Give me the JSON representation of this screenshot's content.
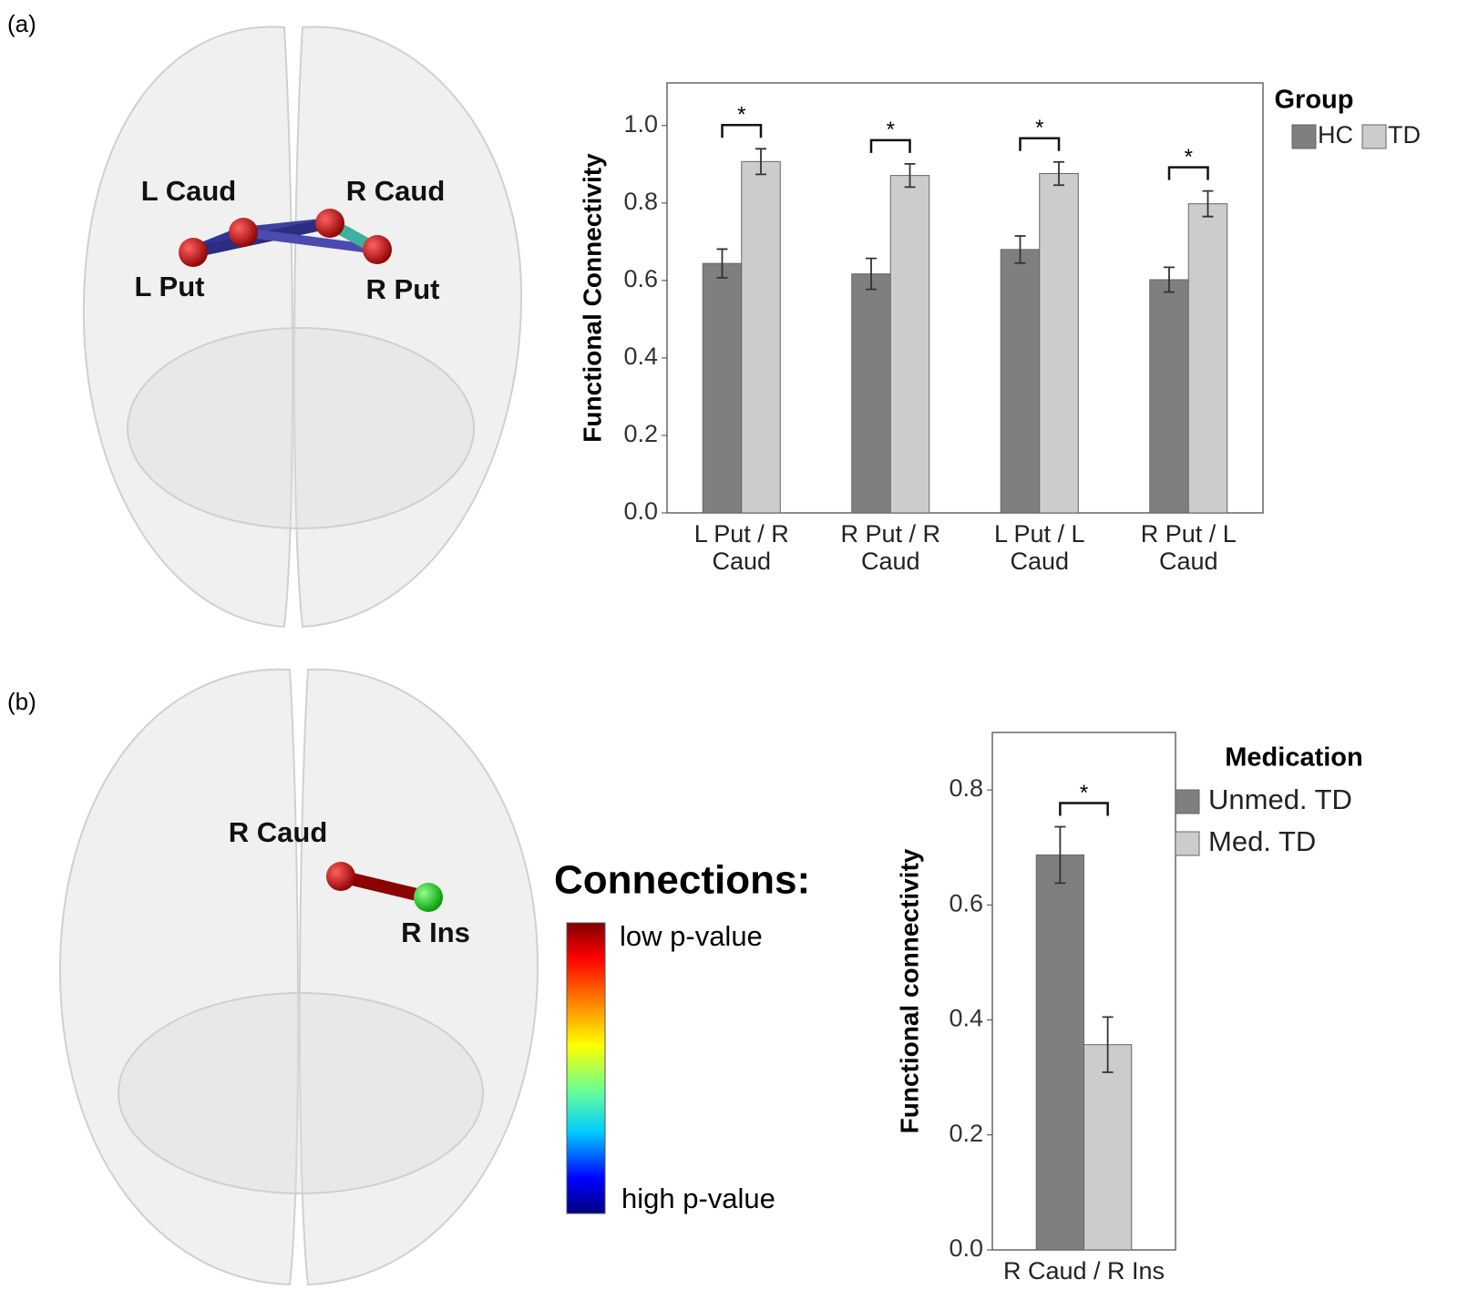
{
  "panel_labels": [
    "(a)",
    "(b)"
  ],
  "brain_labels": [
    [
      "L Caud",
      "R Caud",
      "L Put",
      "R Put"
    ],
    [
      "R Caud",
      "R Ins"
    ]
  ],
  "colorbar": {
    "title": "Connections:",
    "low": "low p-value",
    "high": "high p-value"
  },
  "chart_data": [
    {
      "type": "bar",
      "y_label": "Functional Connectivity",
      "legend_title": "Group",
      "categories": [
        "L Put / R Caud",
        "R Put / R Caud",
        "L Put / L Caud",
        "R Put / L Caud"
      ],
      "series": [
        {
          "name": "HC",
          "color": "#7f7f7f",
          "values": [
            0.644,
            0.617,
            0.68,
            0.602
          ],
          "errors": [
            0.037,
            0.04,
            0.035,
            0.032
          ]
        },
        {
          "name": "TD",
          "color": "#cccccc",
          "values": [
            0.907,
            0.871,
            0.876,
            0.798
          ],
          "errors": [
            0.033,
            0.03,
            0.03,
            0.033
          ]
        }
      ],
      "significance": [
        "*",
        "*",
        "*",
        "*"
      ],
      "ylim": [
        0,
        1.11
      ],
      "yticks": [
        {
          "value": 0,
          "label": "0.0"
        },
        0.2,
        0.4,
        0.6,
        0.8,
        {
          "value": 1,
          "label": "1.0"
        }
      ]
    },
    {
      "type": "bar",
      "y_label": "Functional connectivity",
      "legend_title": "Medication",
      "categories": [
        "R Caud / R Ins"
      ],
      "series": [
        {
          "name": "Unmed. TD",
          "color": "#7f7f7f",
          "values": [
            0.687
          ],
          "errors": [
            0.049
          ]
        },
        {
          "name": "Med. TD",
          "color": "#cccccc",
          "values": [
            0.357
          ],
          "errors": [
            0.048
          ]
        }
      ],
      "significance": [
        "*"
      ],
      "ylim": [
        0,
        0.9
      ],
      "yticks": [
        {
          "value": 0,
          "label": "0.0"
        },
        0.2,
        0.4,
        0.6,
        0.8
      ]
    }
  ]
}
